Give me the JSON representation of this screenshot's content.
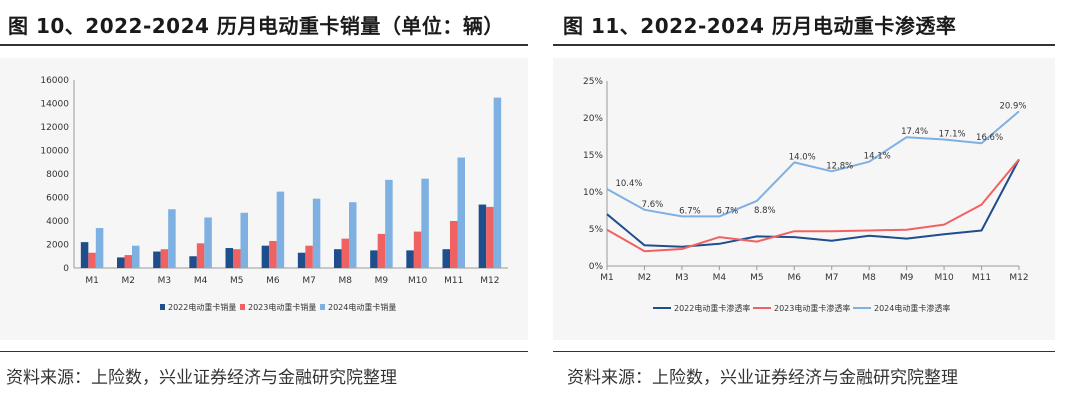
{
  "left": {
    "title": "图 10、2022-2024 历月电动重卡销量（单位：辆）",
    "source": "资料来源：上险数，兴业证券经济与金融研究院整理"
  },
  "right": {
    "title": "图 11、2022-2024 历月电动重卡渗透率",
    "source": "资料来源：上险数，兴业证券经济与金融研究院整理"
  },
  "colors": {
    "s2022": "#1f4e8c",
    "s2023": "#f06262",
    "s2024": "#7fb0e2"
  },
  "chart_data": [
    {
      "type": "bar",
      "title": "2022-2024 历月电动重卡销量（单位：辆）",
      "categories": [
        "M1",
        "M2",
        "M3",
        "M4",
        "M5",
        "M6",
        "M7",
        "M8",
        "M9",
        "M10",
        "M11",
        "M12"
      ],
      "ylim": [
        0,
        16000
      ],
      "yticks": [
        "0",
        "2000",
        "4000",
        "6000",
        "8000",
        "10000",
        "12000",
        "14000",
        "16000"
      ],
      "series": [
        {
          "name": "2022电动重卡销量",
          "values": [
            2200,
            900,
            1400,
            1000,
            1700,
            1900,
            1300,
            1600,
            1500,
            1500,
            1600,
            5400
          ]
        },
        {
          "name": "2023电动重卡销量",
          "values": [
            1300,
            1100,
            1600,
            2100,
            1600,
            2300,
            1900,
            2500,
            2900,
            3100,
            4000,
            5200
          ]
        },
        {
          "name": "2024电动重卡销量",
          "values": [
            3400,
            1900,
            5000,
            4300,
            4700,
            6500,
            5900,
            5600,
            7500,
            7600,
            9400,
            14500
          ]
        }
      ],
      "legend": "bottom"
    },
    {
      "type": "line",
      "title": "2022-2024 历月电动重卡渗透率",
      "categories": [
        "M1",
        "M2",
        "M3",
        "M4",
        "M5",
        "M6",
        "M7",
        "M8",
        "M9",
        "M10",
        "M11",
        "M12"
      ],
      "ylim": [
        0,
        25
      ],
      "yticks": [
        "0%",
        "5%",
        "10%",
        "15%",
        "20%",
        "25%"
      ],
      "series": [
        {
          "name": "2022电动重卡渗透率",
          "values": [
            7.0,
            2.8,
            2.6,
            3.0,
            4.0,
            3.9,
            3.4,
            4.1,
            3.7,
            4.3,
            4.8,
            14.4
          ]
        },
        {
          "name": "2023电动重卡渗透率",
          "values": [
            4.9,
            2.0,
            2.3,
            3.9,
            3.3,
            4.7,
            4.7,
            4.8,
            4.9,
            5.6,
            8.3,
            14.4
          ]
        },
        {
          "name": "2024电动重卡渗透率",
          "values": [
            10.4,
            7.6,
            6.7,
            6.7,
            8.8,
            14.0,
            12.8,
            14.1,
            17.4,
            17.1,
            16.6,
            20.9
          ]
        }
      ],
      "data_labels": [
        "10.4%",
        "7.6%",
        "6.7%",
        "6.7%",
        "8.8%",
        "14.0%",
        "12.8%",
        "14.1%",
        "17.4%",
        "17.1%",
        "16.6%",
        "20.9%"
      ],
      "legend": "bottom"
    }
  ]
}
